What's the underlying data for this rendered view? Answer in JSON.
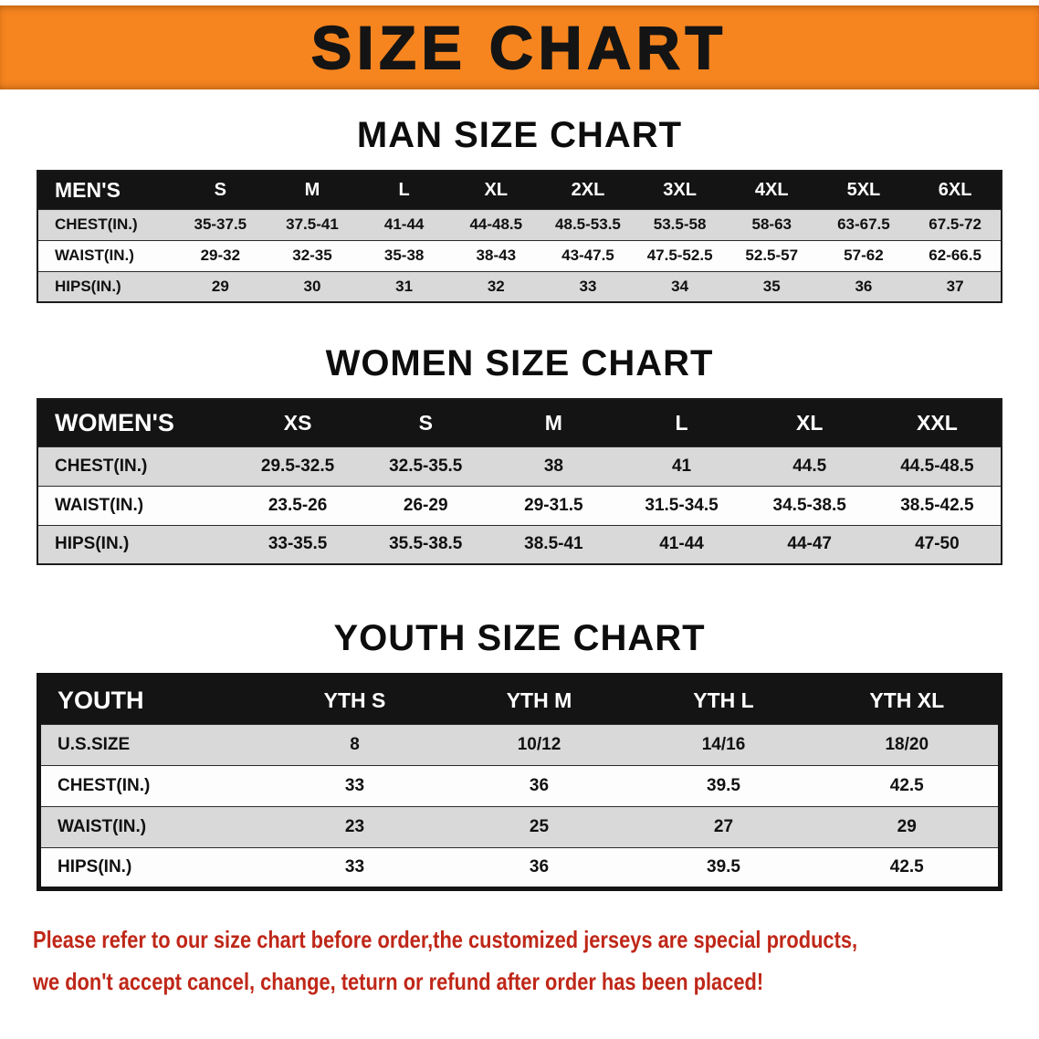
{
  "banner": {
    "title": "SIZE CHART"
  },
  "sections": [
    {
      "heading": "MAN SIZE CHART",
      "table": {
        "header": [
          "MEN'S",
          "S",
          "M",
          "L",
          "XL",
          "2XL",
          "3XL",
          "4XL",
          "5XL",
          "6XL"
        ],
        "rows": [
          [
            "CHEST(IN.)",
            "35-37.5",
            "37.5-41",
            "41-44",
            "44-48.5",
            "48.5-53.5",
            "53.5-58",
            "58-63",
            "63-67.5",
            "67.5-72"
          ],
          [
            "WAIST(IN.)",
            "29-32",
            "32-35",
            "35-38",
            "38-43",
            "43-47.5",
            "47.5-52.5",
            "52.5-57",
            "57-62",
            "62-66.5"
          ],
          [
            "HIPS(IN.)",
            "29",
            "30",
            "31",
            "32",
            "33",
            "34",
            "35",
            "36",
            "37"
          ]
        ]
      }
    },
    {
      "heading": "WOMEN SIZE CHART",
      "table": {
        "header": [
          "WOMEN'S",
          "XS",
          "S",
          "M",
          "L",
          "XL",
          "XXL"
        ],
        "rows": [
          [
            "CHEST(IN.)",
            "29.5-32.5",
            "32.5-35.5",
            "38",
            "41",
            "44.5",
            "44.5-48.5"
          ],
          [
            "WAIST(IN.)",
            "23.5-26",
            "26-29",
            "29-31.5",
            "31.5-34.5",
            "34.5-38.5",
            "38.5-42.5"
          ],
          [
            "HIPS(IN.)",
            "33-35.5",
            "35.5-38.5",
            "38.5-41",
            "41-44",
            "44-47",
            "47-50"
          ]
        ]
      }
    },
    {
      "heading": "YOUTH SIZE CHART",
      "table": {
        "header": [
          "YOUTH",
          "YTH S",
          "YTH M",
          "YTH L",
          "YTH XL"
        ],
        "rows": [
          [
            "U.S.SIZE",
            "8",
            "10/12",
            "14/16",
            "18/20"
          ],
          [
            "CHEST(IN.)",
            "33",
            "36",
            "39.5",
            "42.5"
          ],
          [
            "WAIST(IN.)",
            "23",
            "25",
            "27",
            "29"
          ],
          [
            "HIPS(IN.)",
            "33",
            "36",
            "39.5",
            "42.5"
          ]
        ]
      }
    }
  ],
  "footer": {
    "lines": [
      "Please refer to our size chart before order,the customized jerseys are special products,",
      "we don't accept cancel, change, teturn or refund after order has been placed!"
    ]
  },
  "colors": {
    "banner_bg": "#f6851f",
    "header_bar_bg": "#141414",
    "row_alt_bg": "#d9d9d9",
    "footer_text": "#bf2718"
  }
}
